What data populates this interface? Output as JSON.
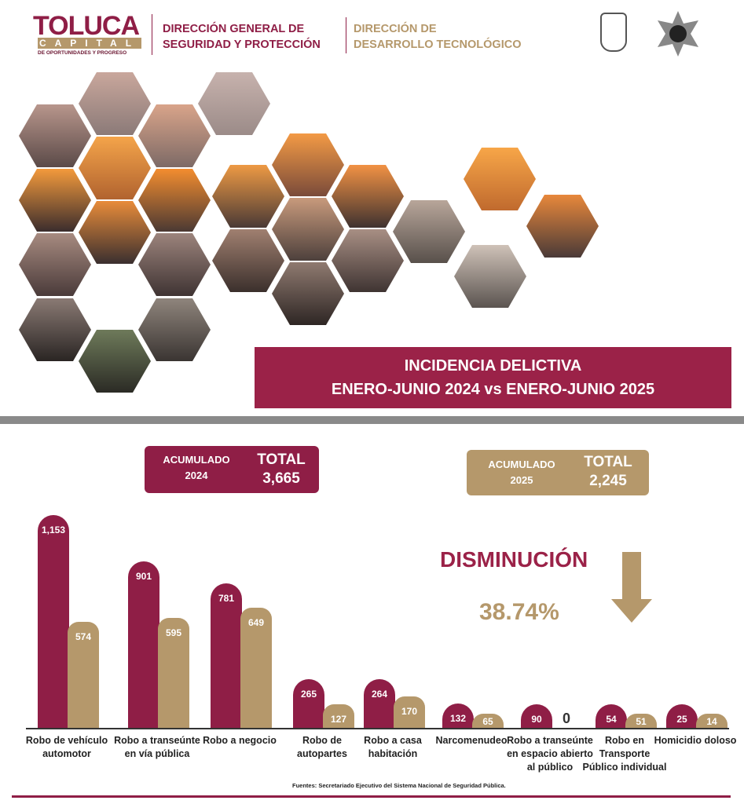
{
  "header": {
    "logo_main": "TOLUCA",
    "logo_sub": "CAPITAL",
    "logo_slogan": "DE OPORTUNIDADES Y PROGRESO",
    "dept1": [
      "DIRECCIÓN GENERAL DE",
      "SEGURIDAD Y PROTECCIÓN"
    ],
    "dept2": [
      "DIRECCIÓN DE",
      "DESARROLLO TECNOLÓGICO"
    ]
  },
  "banner": {
    "line1": "INCIDENCIA DELICTIVA",
    "line2": "ENERO-JUNIO 2024 vs ENERO-JUNIO 2025"
  },
  "acumulado_2024": {
    "label": [
      "ACUMULADO",
      "2024"
    ],
    "total_label": "TOTAL",
    "total": "3,665"
  },
  "acumulado_2025": {
    "label": [
      "ACUMULADO",
      "2025"
    ],
    "total_label": "TOTAL",
    "total": "2,245"
  },
  "change": {
    "label": "DISMINUCIÓN",
    "value": "38.74%",
    "icon": "arrow-down-icon"
  },
  "colors": {
    "y2024": "#8f1e46",
    "y2025": "#b5986b"
  },
  "chart_data": {
    "type": "bar",
    "categories": [
      "Robo de vehículo automotor",
      "Robo a transeúnte en vía pública",
      "Robo a negocio",
      "Robo de autopartes",
      "Robo a casa habitación",
      "Narcomenudeo",
      "Robo a transeúnte en espacio abierto al público",
      "Robo en Transporte Público individual",
      "Homicidio doloso"
    ],
    "series": [
      {
        "values": [
          1153,
          901,
          781,
          265,
          264,
          132,
          90,
          54,
          25
        ]
      },
      {
        "values": [
          574,
          595,
          649,
          127,
          170,
          65,
          0,
          51,
          14
        ]
      }
    ],
    "value_labels": [
      [
        "1,153",
        "901",
        "781",
        "265",
        "264",
        "132",
        "90",
        "54",
        "25"
      ],
      [
        "574",
        "595",
        "649",
        "127",
        "170",
        "65",
        "0",
        "51",
        "14"
      ]
    ]
  },
  "source": "Fuentes: Secretariado Ejecutivo del Sistema Nacional de Seguridad Pública."
}
